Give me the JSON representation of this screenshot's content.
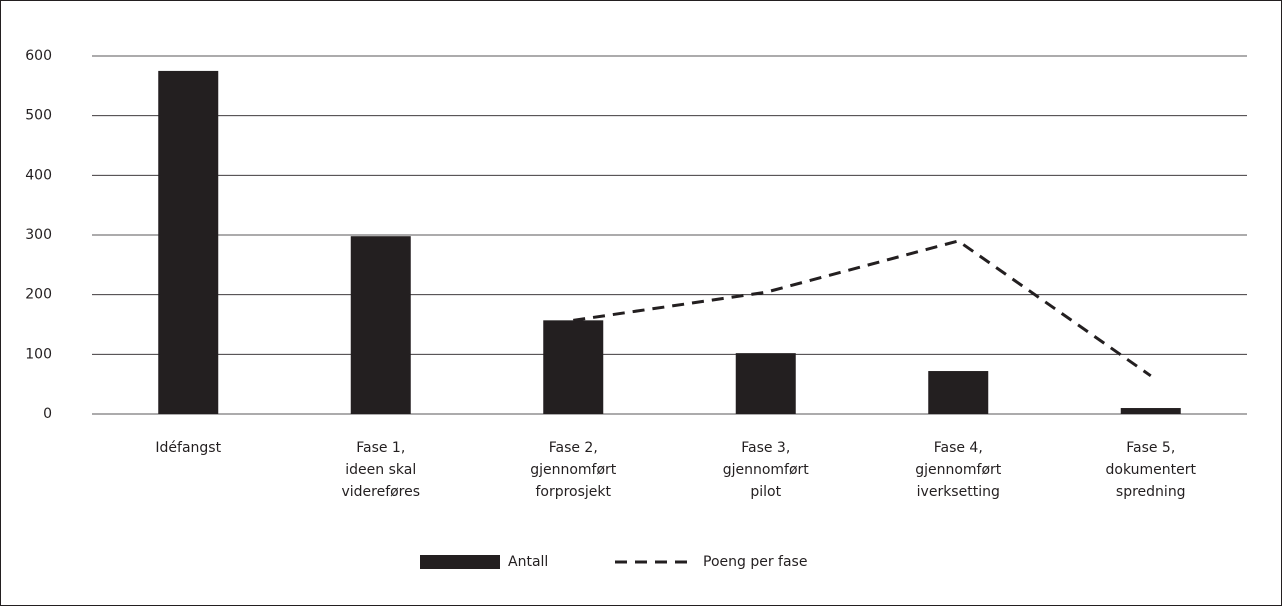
{
  "chart_data": {
    "type": "bar",
    "categories": [
      [
        "Idéfangst"
      ],
      [
        "Fase 1,",
        "ideen skal",
        "videreføres"
      ],
      [
        "Fase 2,",
        "gjennomført",
        "forprosjekt"
      ],
      [
        "Fase 3,",
        "gjennomført",
        "pilot"
      ],
      [
        "Fase 4,",
        "gjennomført",
        "iverksetting"
      ],
      [
        "Fase 5,",
        "dokumentert",
        "spredning"
      ]
    ],
    "series": [
      {
        "name": "Antall",
        "type": "bar",
        "color": "#231f20",
        "values": [
          575,
          298,
          157,
          102,
          72,
          10
        ]
      },
      {
        "name": "Poeng per fase",
        "type": "line",
        "dashed": true,
        "color": "#231f20",
        "values": [
          null,
          null,
          157,
          204,
          290,
          64
        ]
      }
    ],
    "ylim": [
      0,
      600
    ],
    "yticks": [
      0,
      100,
      200,
      300,
      400,
      500,
      600
    ],
    "grid": true,
    "legend": "bottom"
  }
}
